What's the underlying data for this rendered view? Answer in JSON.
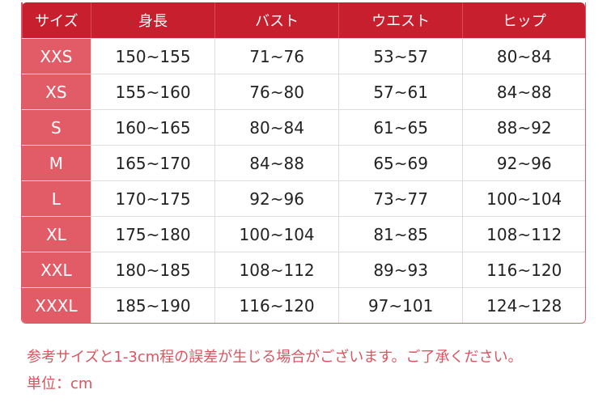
{
  "colors": {
    "header": "#c81f2e",
    "size_column": "#e25c67",
    "note": "#d9545f"
  },
  "table": {
    "headers": [
      "サイズ",
      "身長",
      "バスト",
      "ウエスト",
      "ヒップ"
    ],
    "rows": [
      [
        "XXS",
        "150~155",
        "71~76",
        "53~57",
        "80~84"
      ],
      [
        "XS",
        "155~160",
        "76~80",
        "57~61",
        "84~88"
      ],
      [
        "S",
        "160~165",
        "80~84",
        "61~65",
        "88~92"
      ],
      [
        "M",
        "165~170",
        "84~88",
        "65~69",
        "92~96"
      ],
      [
        "L",
        "170~175",
        "92~96",
        "73~77",
        "100~104"
      ],
      [
        "XL",
        "175~180",
        "100~104",
        "81~85",
        "108~112"
      ],
      [
        "XXL",
        "180~185",
        "108~112",
        "89~93",
        "116~120"
      ],
      [
        "XXXL",
        "185~190",
        "116~120",
        "97~101",
        "124~128"
      ]
    ]
  },
  "notes": {
    "disclaimer": "参考サイズと1-3cm程の誤差が生じる場合がございます。ご了承ください。",
    "unit": "単位：cm"
  }
}
